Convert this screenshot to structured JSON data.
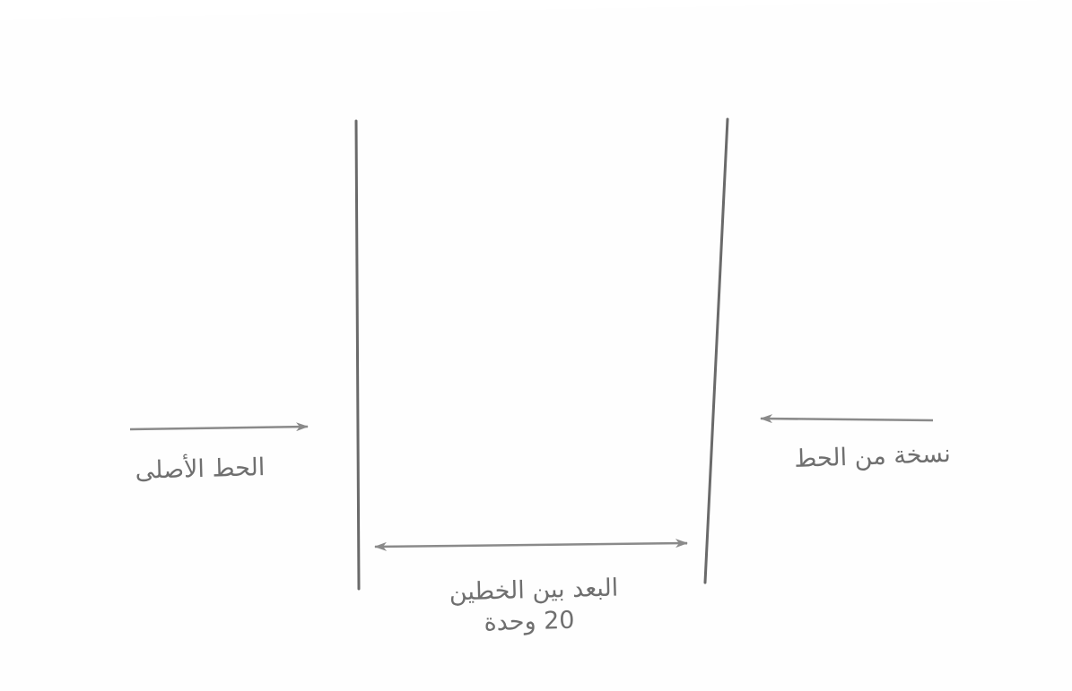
{
  "labels": {
    "original_line": "الحط الأصلى",
    "line_copy": "نسخة من الحط",
    "distance_caption": "البعد بين الخطين",
    "distance_value": "20 وحدة"
  },
  "colors": {
    "background": "#ffffff",
    "paper": "#fefefe",
    "line": "#6a6a6a",
    "arrow": "#8a8a8a",
    "text": "#6f6f6f"
  }
}
